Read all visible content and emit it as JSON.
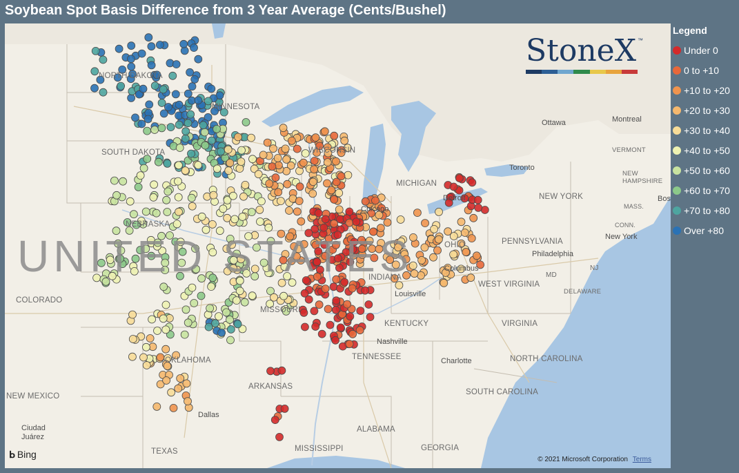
{
  "title": "Soybean Spot Basis Difference from 3 Year Average (Cents/Bushel)",
  "legend": {
    "title": "Legend",
    "items": [
      {
        "label": "Under 0",
        "color": "#d42a2a"
      },
      {
        "label": "0 to +10",
        "color": "#e8683a"
      },
      {
        "label": "+10 to +20",
        "color": "#f0944e"
      },
      {
        "label": "+20 to +30",
        "color": "#f5b86e"
      },
      {
        "label": "+30 to +40",
        "color": "#f7dc98"
      },
      {
        "label": "+40 to +50",
        "color": "#eef2b2"
      },
      {
        "label": "+50 to +60",
        "color": "#c8e3a0"
      },
      {
        "label": "+60 to +70",
        "color": "#8cc98a"
      },
      {
        "label": "+70 to +80",
        "color": "#4ea5a0"
      },
      {
        "label": "Over +80",
        "color": "#2a72b5"
      }
    ]
  },
  "brand": {
    "name": "StoneX",
    "tm": "™",
    "stripe_colors": [
      "#1d3a63",
      "#2d5f95",
      "#6fa6cf",
      "#2f8a4c",
      "#e8c84a",
      "#e8a33c",
      "#c83a3a"
    ]
  },
  "map": {
    "country_label": "UNITED STATES",
    "bing_label": "Bing",
    "copyright": "© 2021 Microsoft Corporation",
    "terms": "Terms",
    "states": [
      "NORTH DAKOTA",
      "SOUTH DAKOTA",
      "MINNESOTA",
      "NEBRASKA",
      "COLORADO",
      "MISSOURI",
      "KENTUCKY",
      "TENNESSEE",
      "OKLAHOMA",
      "ARKANSAS",
      "NEW MEXICO",
      "TEXAS",
      "ALABAMA",
      "MISSISSIPPI",
      "INDIANA",
      "OHIO",
      "MICHIGAN",
      "WISCONSIN",
      "PENNSYLVANIA",
      "WEST VIRGINIA",
      "VIRGINIA",
      "NORTH CAROLINA",
      "SOUTH CAROLINA",
      "NEW YORK",
      "VERMONT",
      "NEW HAMPSHIRE",
      "MASS.",
      "CONN.",
      "DELAWARE",
      "MD",
      "NJ",
      "GEORGIA"
    ],
    "cities": [
      "Ottawa",
      "Montreal",
      "Toronto",
      "Chicago",
      "Detroit",
      "Columbus",
      "Louisville",
      "Nashville",
      "Charlotte",
      "Philadelphia",
      "New York",
      "Dallas",
      "Boston",
      "Ciudad Juárez"
    ]
  }
}
